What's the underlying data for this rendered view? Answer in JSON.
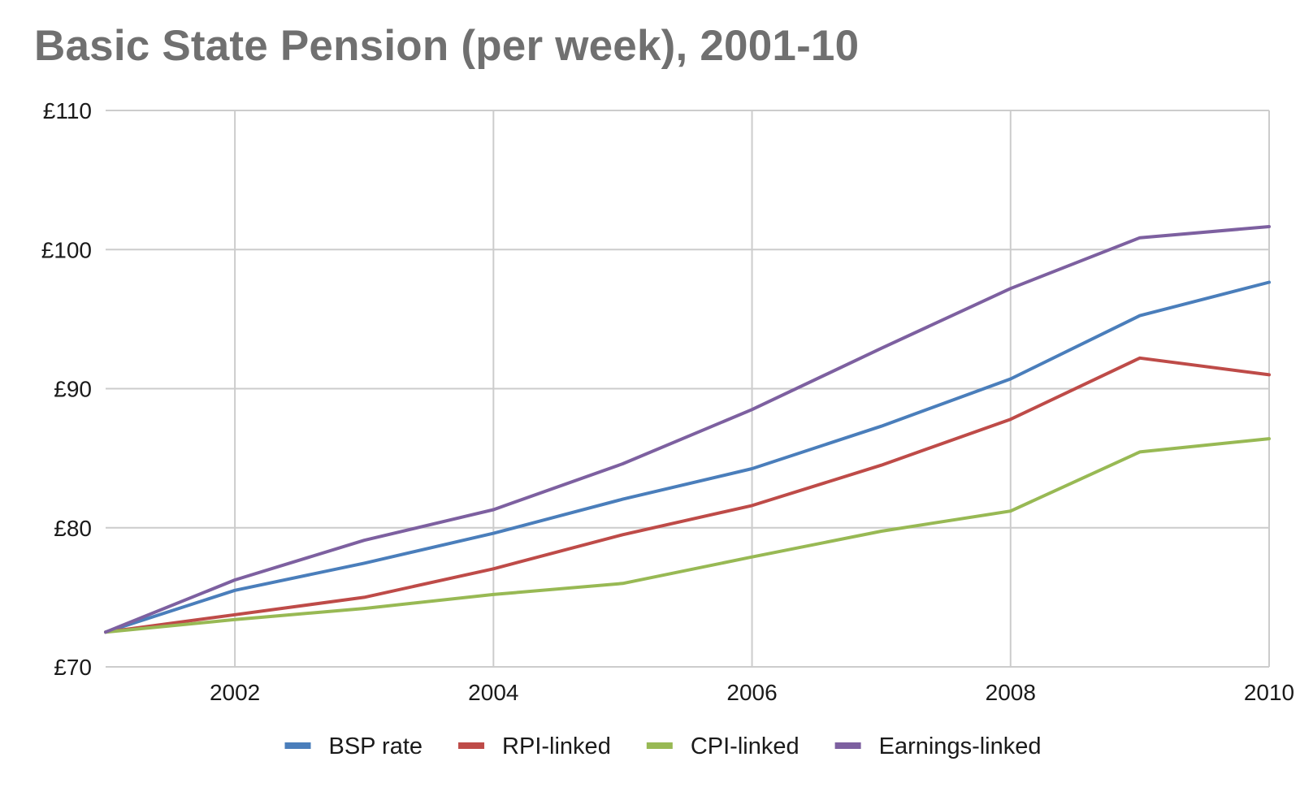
{
  "chart_data": {
    "type": "line",
    "title": "Basic State Pension (per week), 2001-10",
    "xlabel": "",
    "ylabel": "",
    "x": [
      2001,
      2002,
      2003,
      2004,
      2005,
      2006,
      2007,
      2008,
      2009,
      2010
    ],
    "xlim": [
      2001,
      2010
    ],
    "ylim": [
      70,
      110
    ],
    "x_ticks": [
      2002,
      2004,
      2006,
      2008,
      2010
    ],
    "y_ticks": [
      70,
      80,
      90,
      100,
      110
    ],
    "y_tick_labels": [
      "£70",
      "£80",
      "£90",
      "£100",
      "£110"
    ],
    "grid": true,
    "legend_position": "bottom",
    "series": [
      {
        "name": "BSP rate",
        "color": "#4a7ebb",
        "values": [
          72.5,
          75.5,
          77.45,
          79.6,
          82.05,
          84.25,
          87.3,
          90.7,
          95.25,
          97.65
        ]
      },
      {
        "name": "RPI-linked",
        "color": "#be4b48",
        "values": [
          72.5,
          73.75,
          75.0,
          77.05,
          79.5,
          81.6,
          84.5,
          87.8,
          92.2,
          91.0
        ]
      },
      {
        "name": "CPI-linked",
        "color": "#98b954",
        "values": [
          72.5,
          73.4,
          74.2,
          75.2,
          76.0,
          77.9,
          79.75,
          81.2,
          85.45,
          86.4
        ]
      },
      {
        "name": "Earnings-linked",
        "color": "#7d60a0",
        "values": [
          72.5,
          76.25,
          79.1,
          81.3,
          84.6,
          88.5,
          92.9,
          97.2,
          100.85,
          101.65
        ]
      }
    ]
  }
}
